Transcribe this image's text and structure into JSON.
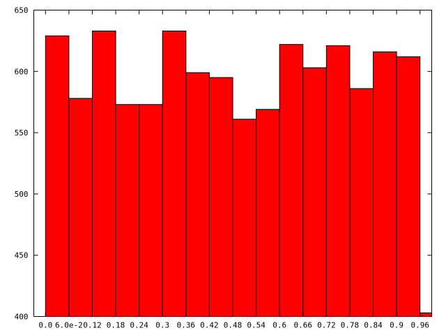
{
  "chart_data": {
    "type": "bar",
    "title": "",
    "xlabel": "",
    "ylabel": "",
    "ylim": [
      400,
      650
    ],
    "xlim": [
      -0.03,
      0.99
    ],
    "yticks": [
      400,
      450,
      500,
      550,
      600,
      650
    ],
    "yticklabels": [
      "400",
      "450",
      "500",
      "550",
      "600",
      "650"
    ],
    "xticks": [
      0.0,
      0.06,
      0.12,
      0.18,
      0.24,
      0.3,
      0.36,
      0.42,
      0.48,
      0.54,
      0.6,
      0.66,
      0.72,
      0.78,
      0.84,
      0.9,
      0.96
    ],
    "xticklabels": [
      "0.0",
      "6.0e-2",
      "0.12",
      "0.18",
      "0.24",
      "0.3",
      "0.36",
      "0.42",
      "0.48",
      "0.54",
      "0.6",
      "0.66",
      "0.72",
      "0.78",
      "0.84",
      "0.9",
      "0.96"
    ],
    "bin_width": 0.06,
    "bin_starts": [
      0.0,
      0.06,
      0.12,
      0.18,
      0.24,
      0.3,
      0.36,
      0.42,
      0.48,
      0.54,
      0.6,
      0.66,
      0.72,
      0.78,
      0.84,
      0.9,
      0.96
    ],
    "values": [
      629,
      578,
      633,
      573,
      573,
      633,
      599,
      595,
      561,
      569,
      622,
      603,
      621,
      586,
      616,
      612,
      403
    ],
    "bar_color": "#ff0000",
    "edge_color": "#000000",
    "grid": false,
    "legend": "none"
  }
}
